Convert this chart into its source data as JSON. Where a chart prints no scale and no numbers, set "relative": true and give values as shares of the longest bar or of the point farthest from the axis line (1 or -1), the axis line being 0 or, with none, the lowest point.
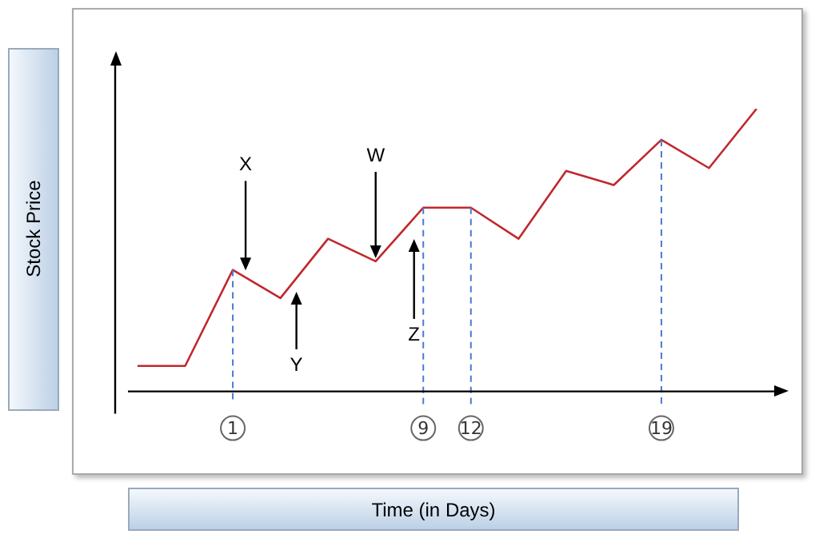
{
  "chart_data": {
    "type": "line",
    "relative": true,
    "xlabel": "Time (in Days)",
    "ylabel": "Stock Price",
    "categories": [
      null,
      null,
      "1",
      null,
      null,
      null,
      "9",
      "12",
      null,
      null,
      null,
      "19",
      null,
      null
    ],
    "series": [
      {
        "color": "#c0282d",
        "values": [
          0.09,
          0.09,
          0.43,
          0.33,
          0.54,
          0.46,
          0.65,
          0.65,
          0.54,
          0.78,
          0.73,
          0.89,
          0.79,
          1
        ]
      }
    ],
    "annotations": [
      "X",
      "Y",
      "W",
      "Z"
    ],
    "ref_lines": [
      {
        "axis": "x",
        "value": "1",
        "color": "#4a7bd0",
        "line_style": "dashed"
      },
      {
        "axis": "x",
        "value": "9",
        "color": "#4a7bd0",
        "line_style": "dashed"
      },
      {
        "axis": "x",
        "value": "12",
        "color": "#4a7bd0",
        "line_style": "dashed"
      },
      {
        "axis": "x",
        "value": "19",
        "color": "#4a7bd0",
        "line_style": "dashed"
      }
    ],
    "grid": false,
    "legend": false,
    "marker": "none",
    "line_style": "solid"
  }
}
